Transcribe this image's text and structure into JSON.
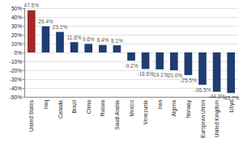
{
  "chart_data": {
    "type": "bar",
    "categories": [
      "United States",
      "Iraq",
      "Canada",
      "Brazil",
      "China",
      "Russia",
      "Saudi Arabia",
      "Mexico",
      "Venezuela",
      "Iran",
      "Algeria",
      "Norway",
      "European Union",
      "United Kingdom",
      "Libya"
    ],
    "values": [
      47.5,
      29.4,
      23.1,
      11.6,
      9.6,
      8.4,
      8.1,
      -9.2,
      -18.6,
      -19.1,
      -20.0,
      -25.5,
      -36.5,
      -44.3,
      -45.7
    ],
    "value_labels": [
      "47.5%",
      "29.4%",
      "23.1%",
      "11.6%",
      "9.6%",
      "8.4%",
      "8.1%",
      "-9.2%",
      "-18.6%",
      "-19.1%",
      "-20.0%",
      "-25.5%",
      "-36.5%",
      "-44.3%",
      "-45.7%"
    ],
    "colors": [
      "#a3262a",
      "#1f3d73",
      "#1f3d73",
      "#1f3d73",
      "#1f3d73",
      "#1f3d73",
      "#1f3d73",
      "#1f3d73",
      "#1f3d73",
      "#1f3d73",
      "#1f3d73",
      "#1f3d73",
      "#1f3d73",
      "#1f3d73",
      "#1f3d73"
    ],
    "ylim": [
      -50,
      50
    ],
    "yticks": [
      {
        "value": -50,
        "label": "-50%"
      },
      {
        "value": -40,
        "label": "-40%"
      },
      {
        "value": -30,
        "label": "-30%"
      },
      {
        "value": -20,
        "label": "-20%"
      },
      {
        "value": -10,
        "label": "-10%"
      },
      {
        "value": 0,
        "label": "0%"
      },
      {
        "value": 10,
        "label": "10%"
      },
      {
        "value": 20,
        "label": "20%"
      },
      {
        "value": 30,
        "label": "30%"
      },
      {
        "value": 40,
        "label": "40%"
      },
      {
        "value": 50,
        "label": "50%"
      }
    ],
    "grid": true,
    "data_labels": true
  }
}
